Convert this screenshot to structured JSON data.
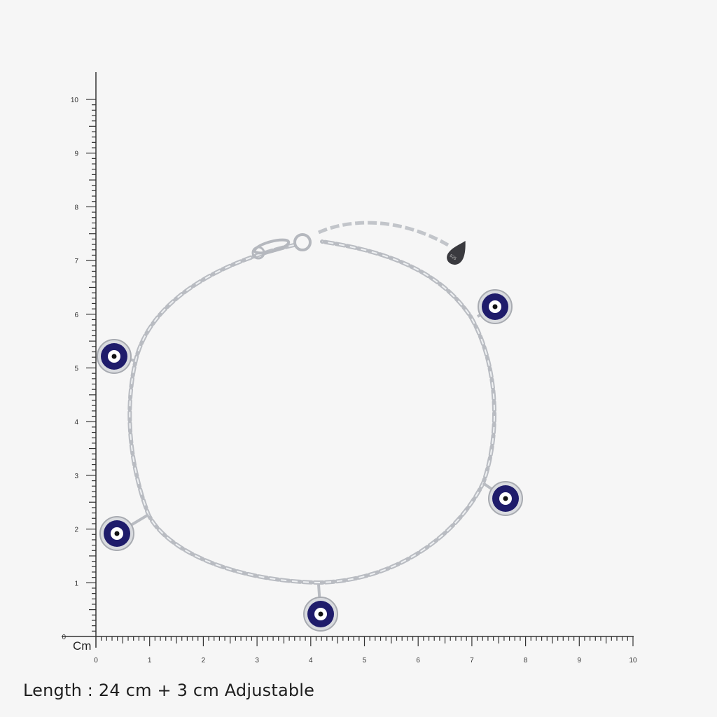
{
  "ruler": {
    "unit_label": "Cm",
    "x_ticks": [
      "0",
      "1",
      "2",
      "3",
      "4",
      "5",
      "6",
      "7",
      "8",
      "9",
      "10"
    ],
    "y_ticks": [
      "0",
      "1",
      "2",
      "3",
      "4",
      "5",
      "6",
      "7",
      "8",
      "9",
      "10"
    ],
    "range_cm": [
      0,
      10
    ],
    "minor_step_cm": 0.1
  },
  "product": {
    "type": "evil eye charm anklet",
    "charm_count": 5,
    "tag_text": "925",
    "colors": {
      "chain": "#c9ccd1",
      "charm_blue": "#1f1c6b",
      "charm_white": "#ffffff",
      "tag": "#3a3a3f"
    }
  },
  "caption": "Length : 24 cm + 3 cm Adjustable"
}
